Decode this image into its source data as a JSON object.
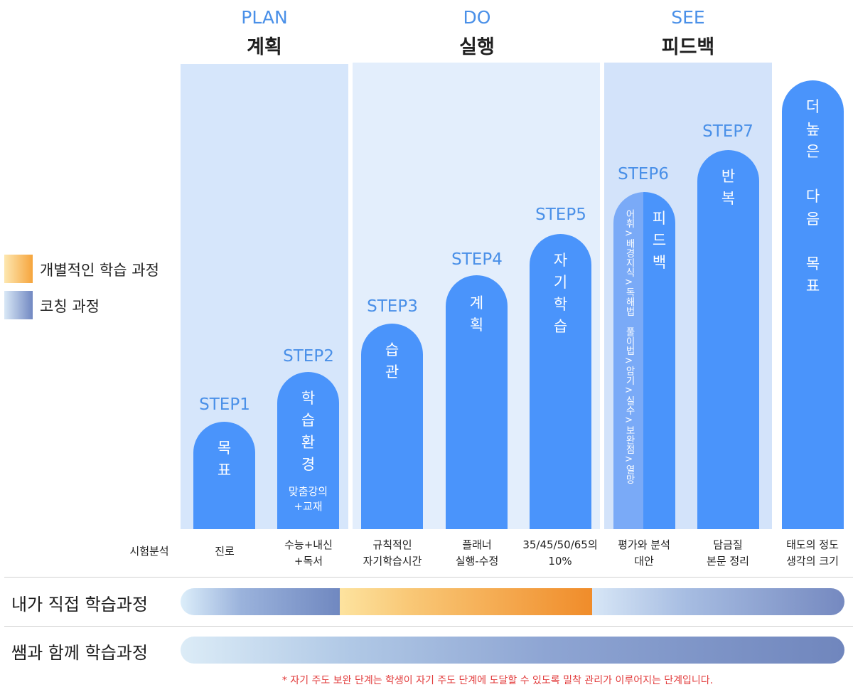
{
  "phases": [
    {
      "en": "PLAN",
      "ko": "계획"
    },
    {
      "en": "DO",
      "ko": "실행"
    },
    {
      "en": "SEE",
      "ko": "피드백"
    }
  ],
  "legend": {
    "individual": "개별적인 학습 과정",
    "coaching": "코칭 과정"
  },
  "steps": [
    {
      "label": "STEP1",
      "text": "목\n표",
      "sub": ""
    },
    {
      "label": "STEP2",
      "text": "학\n습\n환\n경",
      "sub": "맞춤강의\n+교재"
    },
    {
      "label": "STEP3",
      "text": "습\n관",
      "sub": ""
    },
    {
      "label": "STEP4",
      "text": "계\n획",
      "sub": ""
    },
    {
      "label": "STEP5",
      "text": "자\n기\n학\n습",
      "sub": ""
    },
    {
      "label": "STEP6",
      "text": "피\n드\n백",
      "sub": "어휘>배경지식>독해법 풀이법>암기>실수>보완점>열망"
    },
    {
      "label": "STEP7",
      "text": "반\n복",
      "sub": ""
    }
  ],
  "final_pill": "더\n높\n은\n\n다\n음\n\n목\n표",
  "captions": {
    "row_header": "시험분석",
    "items": [
      "진로",
      "수능+내신\n+독서",
      "규칙적인\n자기학습시간",
      "플래너\n실행-수정",
      "35/45/50/65의\n10%",
      "평가와 분석\n대안",
      "담금질\n본문 정리",
      "태도의 정도\n생각의 크기"
    ]
  },
  "rows": {
    "self": "내가 직접 학습과정",
    "with_teacher": "쌤과 함께 학습과정"
  },
  "footnote": "* 자기 주도 보완 단계는 학생이 자기 주도 단계에 도달할 수 있도록 밀착 관리가 이루어지는 단계입니다.",
  "colors": {
    "accent_blue": "#4a90e8",
    "pill_blue": "#4a94fb",
    "orange": "#f08c2a",
    "footnote_red": "#e23b3b"
  }
}
